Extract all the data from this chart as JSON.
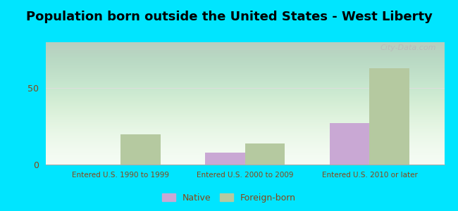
{
  "title": "Population born outside the United States - West Liberty",
  "categories": [
    "Entered U.S. 1990 to 1999",
    "Entered U.S. 2000 to 2009",
    "Entered U.S. 2010 or later"
  ],
  "native_values": [
    0,
    8,
    27
  ],
  "foreign_values": [
    20,
    14,
    63
  ],
  "native_color": "#c9a8d4",
  "foreign_color": "#b5c9a0",
  "background_outer": "#00e5ff",
  "plot_bg_color": "#eef7ee",
  "ylim": [
    0,
    80
  ],
  "yticks": [
    0,
    50
  ],
  "bar_width": 0.32,
  "legend_native": "Native",
  "legend_foreign": "Foreign-born",
  "title_fontsize": 13,
  "axis_label_color": "#8b4513",
  "tick_label_color": "#8b4513",
  "watermark": "City-Data.com"
}
